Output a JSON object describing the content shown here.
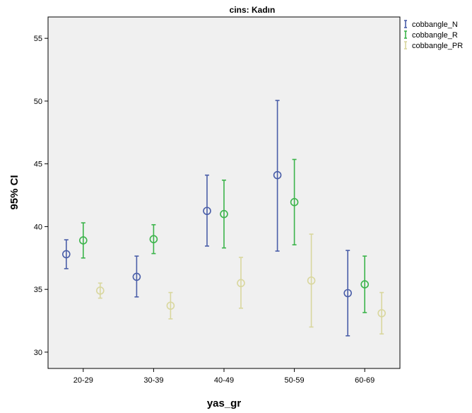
{
  "chart_data": {
    "type": "errorbar",
    "title": "cins: Kadın",
    "xlabel": "yas_gr",
    "ylabel": "95% CI",
    "categories": [
      "20-29",
      "30-39",
      "40-49",
      "50-59",
      "60-69"
    ],
    "ylim": [
      28.7,
      56.7
    ],
    "yticks": [
      "30",
      "35",
      "40",
      "45",
      "50",
      "55"
    ],
    "grid": false,
    "legend_position": "top-right",
    "series": [
      {
        "name": "cobbangle_N",
        "color": "#4a5ea8",
        "mean": [
          37.8,
          36.0,
          41.25,
          44.1,
          34.7
        ],
        "lower": [
          36.65,
          34.4,
          38.45,
          38.05,
          31.3
        ],
        "upper": [
          38.95,
          37.65,
          44.1,
          50.05,
          38.1
        ]
      },
      {
        "name": "cobbangle_R",
        "color": "#3cb44b",
        "mean": [
          38.9,
          39.0,
          41.0,
          41.95,
          35.4
        ],
        "lower": [
          37.5,
          37.85,
          38.3,
          38.55,
          33.15
        ],
        "upper": [
          40.3,
          40.15,
          43.7,
          45.35,
          37.65
        ]
      },
      {
        "name": "cobbangle_PR",
        "color": "#d9d79e",
        "mean": [
          34.9,
          33.7,
          35.5,
          35.7,
          33.1
        ],
        "lower": [
          34.3,
          32.65,
          33.5,
          32.0,
          31.45
        ],
        "upper": [
          35.5,
          34.75,
          37.55,
          39.4,
          34.75
        ]
      }
    ]
  }
}
